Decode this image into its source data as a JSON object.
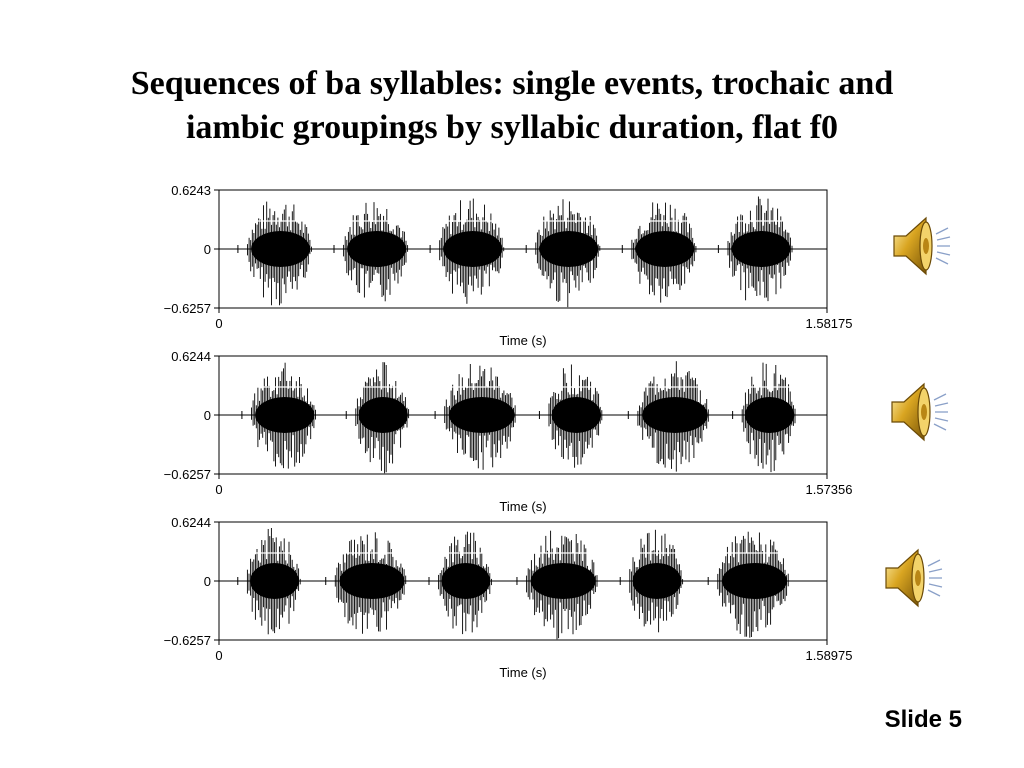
{
  "slide": {
    "title_line1": "Sequences of ba syllables: single events, trochaic and",
    "title_line2": "iambic groupings by syllabic duration, flat f0",
    "slide_number": "Slide 5"
  },
  "waveforms": [
    {
      "y_max": "0.6243",
      "y_zero": "0",
      "y_min": "−0.6257",
      "x_start": "0",
      "x_end": "1.58175",
      "xlabel": "Time (s)",
      "duration": 1.58175,
      "syllables": [
        [
          0.07,
          0.25
        ],
        [
          0.32,
          0.5
        ],
        [
          0.57,
          0.75
        ],
        [
          0.82,
          1.0
        ],
        [
          1.07,
          1.25
        ],
        [
          1.32,
          1.5
        ]
      ]
    },
    {
      "y_max": "0.6244",
      "y_zero": "0",
      "y_min": "−0.6257",
      "x_start": "0",
      "x_end": "1.57356",
      "xlabel": "Time (s)",
      "duration": 1.57356,
      "syllables": [
        [
          0.08,
          0.26
        ],
        [
          0.35,
          0.5
        ],
        [
          0.58,
          0.78
        ],
        [
          0.85,
          1.0
        ],
        [
          1.08,
          1.28
        ],
        [
          1.35,
          1.5
        ]
      ]
    },
    {
      "y_max": "0.6244",
      "y_zero": "0",
      "y_min": "−0.6257",
      "x_start": "0",
      "x_end": "1.58975",
      "xlabel": "Time (s)",
      "duration": 1.58975,
      "syllables": [
        [
          0.07,
          0.22
        ],
        [
          0.3,
          0.5
        ],
        [
          0.57,
          0.72
        ],
        [
          0.8,
          1.0
        ],
        [
          1.07,
          1.22
        ],
        [
          1.3,
          1.5
        ]
      ]
    }
  ],
  "audio_buttons": [
    "speaker-icon",
    "speaker-icon",
    "speaker-icon"
  ]
}
